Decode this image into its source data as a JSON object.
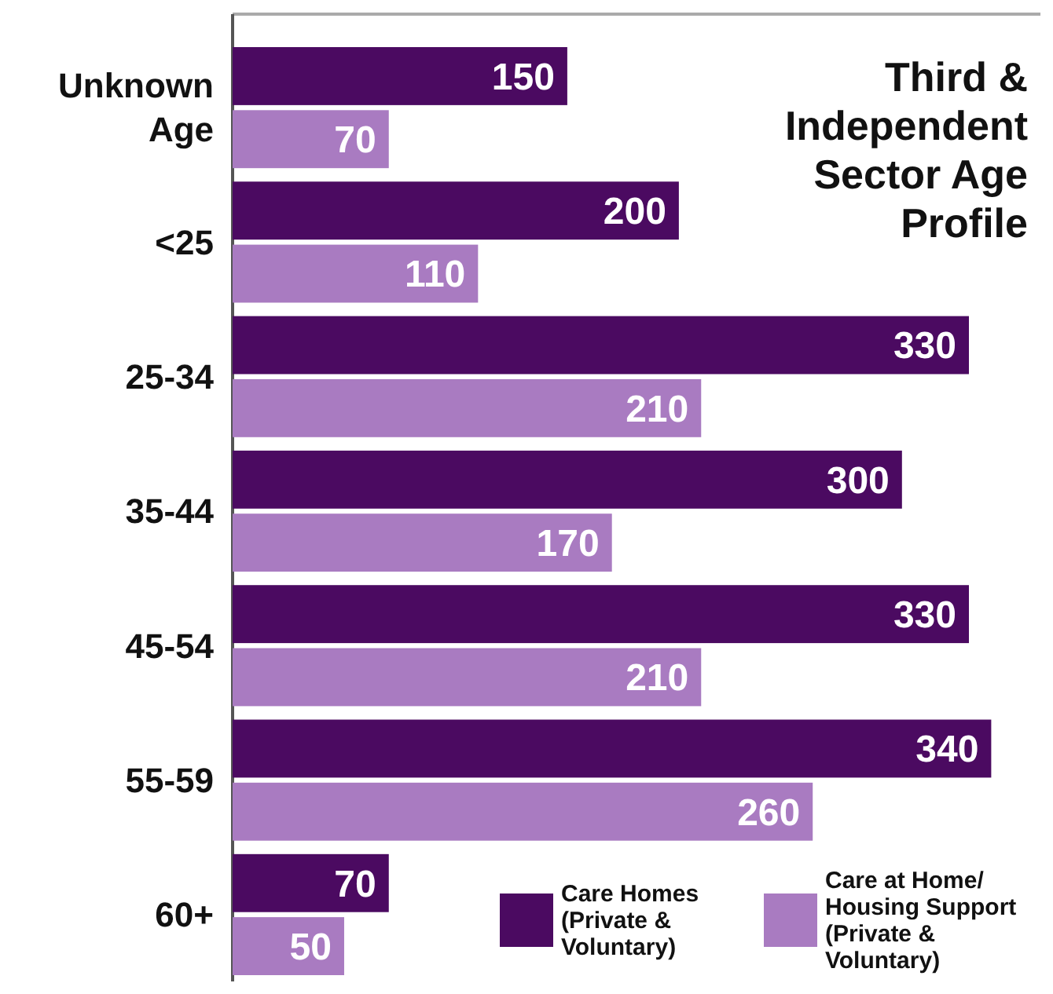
{
  "chart_data": {
    "type": "bar",
    "orientation": "horizontal",
    "title": "Third & Independent Sector Age Profile",
    "categories": [
      "Unknown Age",
      "<25",
      "25-34",
      "35-44",
      "45-54",
      "55-59",
      "60+"
    ],
    "series": [
      {
        "name": "Care Homes (Private & Voluntary)",
        "color": "#4b0a61",
        "values": [
          150,
          200,
          330,
          300,
          330,
          340,
          70
        ]
      },
      {
        "name": "Care at Home/ Housing Support (Private & Voluntary)",
        "color": "#a97bc1",
        "values": [
          70,
          110,
          210,
          170,
          210,
          260,
          50
        ]
      }
    ],
    "data_labels": true,
    "legend": "bottom right"
  }
}
